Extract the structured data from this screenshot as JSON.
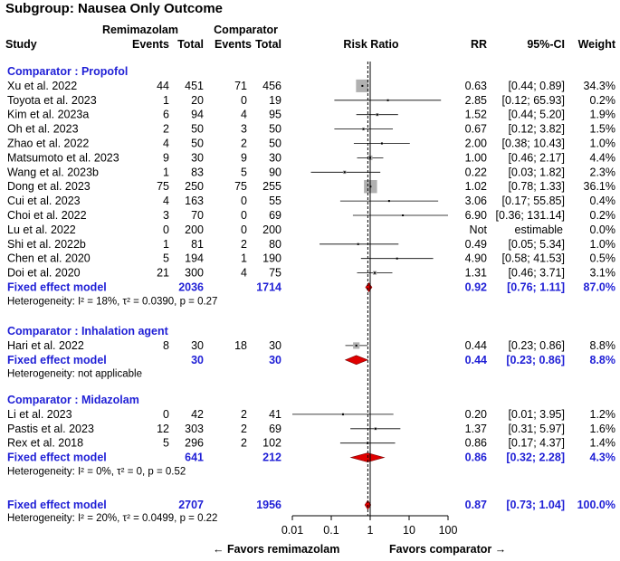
{
  "title": "Subgroup: Nausea Only Outcome",
  "headers": {
    "treatment_group": "Remimazolam",
    "comparator_group": "Comparator",
    "study": "Study",
    "events": "Events",
    "total": "Total",
    "plot": "Risk Ratio",
    "rr": "RR",
    "ci": "95%-CI",
    "weight": "Weight"
  },
  "axis": {
    "ticks": [
      "0.01",
      "0.1",
      "1",
      "10",
      "100"
    ],
    "favors_left": "← Favors remimazolam",
    "favors_right": "Favors comparator →"
  },
  "colors": {
    "subgroup_text": "#1f1fd6",
    "box": "#b0b0b0",
    "diamond": "#e00000"
  },
  "chart_data": {
    "type": "forest",
    "scale": "log",
    "xlim": [
      0.01,
      100
    ],
    "reference_line": 1,
    "overall_dashed_line": 0.87,
    "subgroups": [
      {
        "label": "Comparator : Propofol",
        "studies": [
          {
            "study": "Xu et al. 2022",
            "e1": "44",
            "n1": "451",
            "e2": "71",
            "n2": "456",
            "rr": 0.63,
            "lo": 0.44,
            "hi": 0.89,
            "rr_text": "0.63",
            "ci_text": "[0.44;  0.89]",
            "weight_text": "34.3%"
          },
          {
            "study": "Toyota et al. 2023",
            "e1": "1",
            "n1": "20",
            "e2": "0",
            "n2": "19",
            "rr": 2.85,
            "lo": 0.12,
            "hi": 65.93,
            "rr_text": "2.85",
            "ci_text": "[0.12; 65.93]",
            "weight_text": "0.2%"
          },
          {
            "study": "Kim et al. 2023a",
            "e1": "6",
            "n1": "94",
            "e2": "4",
            "n2": "95",
            "rr": 1.52,
            "lo": 0.44,
            "hi": 5.2,
            "rr_text": "1.52",
            "ci_text": "[0.44;  5.20]",
            "weight_text": "1.9%"
          },
          {
            "study": "Oh et al. 2023",
            "e1": "2",
            "n1": "50",
            "e2": "3",
            "n2": "50",
            "rr": 0.67,
            "lo": 0.12,
            "hi": 3.82,
            "rr_text": "0.67",
            "ci_text": "[0.12;  3.82]",
            "weight_text": "1.5%"
          },
          {
            "study": "Zhao et al. 2022",
            "e1": "4",
            "n1": "50",
            "e2": "2",
            "n2": "50",
            "rr": 2.0,
            "lo": 0.38,
            "hi": 10.43,
            "rr_text": "2.00",
            "ci_text": "[0.38; 10.43]",
            "weight_text": "1.0%"
          },
          {
            "study": "Matsumoto et al. 2023",
            "e1": "9",
            "n1": "30",
            "e2": "9",
            "n2": "30",
            "rr": 1.0,
            "lo": 0.46,
            "hi": 2.17,
            "rr_text": "1.00",
            "ci_text": "[0.46;  2.17]",
            "weight_text": "4.4%"
          },
          {
            "study": "Wang et al. 2023b",
            "e1": "1",
            "n1": "83",
            "e2": "5",
            "n2": "90",
            "rr": 0.22,
            "lo": 0.03,
            "hi": 1.82,
            "rr_text": "0.22",
            "ci_text": "[0.03;  1.82]",
            "weight_text": "2.3%"
          },
          {
            "study": "Dong et al. 2023",
            "e1": "75",
            "n1": "250",
            "e2": "75",
            "n2": "255",
            "rr": 1.02,
            "lo": 0.78,
            "hi": 1.33,
            "rr_text": "1.02",
            "ci_text": "[0.78;  1.33]",
            "weight_text": "36.1%"
          },
          {
            "study": "Cui et al. 2023",
            "e1": "4",
            "n1": "163",
            "e2": "0",
            "n2": "55",
            "rr": 3.06,
            "lo": 0.17,
            "hi": 55.85,
            "rr_text": "3.06",
            "ci_text": "[0.17; 55.85]",
            "weight_text": "0.4%"
          },
          {
            "study": "Choi et al. 2022",
            "e1": "3",
            "n1": "70",
            "e2": "0",
            "n2": "69",
            "rr": 6.9,
            "lo": 0.36,
            "hi": 131.14,
            "rr_text": "6.90",
            "ci_text": "[0.36; 131.14]",
            "weight_text": "0.2%"
          },
          {
            "study": "Lu et al. 2022",
            "e1": "0",
            "n1": "200",
            "e2": "0",
            "n2": "200",
            "rr": null,
            "lo": null,
            "hi": null,
            "rr_text": "Not",
            "ci_text": "estimable",
            "weight_text": "0.0%"
          },
          {
            "study": "Shi et al. 2022b",
            "e1": "1",
            "n1": "81",
            "e2": "2",
            "n2": "80",
            "rr": 0.49,
            "lo": 0.05,
            "hi": 5.34,
            "rr_text": "0.49",
            "ci_text": "[0.05;  5.34]",
            "weight_text": "1.0%"
          },
          {
            "study": "Chen et al. 2020",
            "e1": "5",
            "n1": "194",
            "e2": "1",
            "n2": "190",
            "rr": 4.9,
            "lo": 0.58,
            "hi": 41.53,
            "rr_text": "4.90",
            "ci_text": "[0.58; 41.53]",
            "weight_text": "0.5%"
          },
          {
            "study": "Doi et al. 2020",
            "e1": "21",
            "n1": "300",
            "e2": "4",
            "n2": "75",
            "rr": 1.31,
            "lo": 0.46,
            "hi": 3.71,
            "rr_text": "1.31",
            "ci_text": "[0.46;  3.71]",
            "weight_text": "3.1%"
          }
        ],
        "pooled": {
          "label": "Fixed effect model",
          "n1": "2036",
          "n2": "1714",
          "rr": 0.92,
          "lo": 0.76,
          "hi": 1.11,
          "rr_text": "0.92",
          "ci_text": "[0.76;  1.11]",
          "weight_text": "87.0%"
        },
        "heterogeneity": "Heterogeneity: I² = 18%, τ² = 0.0390, p = 0.27"
      },
      {
        "label": "Comparator : Inhalation agent",
        "studies": [
          {
            "study": "Hari et al. 2022",
            "e1": "8",
            "n1": "30",
            "e2": "18",
            "n2": "30",
            "rr": 0.44,
            "lo": 0.23,
            "hi": 0.86,
            "rr_text": "0.44",
            "ci_text": "[0.23;  0.86]",
            "weight_text": "8.8%"
          }
        ],
        "pooled": {
          "label": "Fixed effect model",
          "n1": "30",
          "n2": "30",
          "rr": 0.44,
          "lo": 0.23,
          "hi": 0.86,
          "rr_text": "0.44",
          "ci_text": "[0.23;  0.86]",
          "weight_text": "8.8%"
        },
        "heterogeneity": "Heterogeneity: not applicable"
      },
      {
        "label": "Comparator : Midazolam",
        "studies": [
          {
            "study": "Li et al. 2023",
            "e1": "0",
            "n1": "42",
            "e2": "2",
            "n2": "41",
            "rr": 0.2,
            "lo": 0.01,
            "hi": 3.95,
            "rr_text": "0.20",
            "ci_text": "[0.01;  3.95]",
            "weight_text": "1.2%"
          },
          {
            "study": "Pastis et al. 2023",
            "e1": "12",
            "n1": "303",
            "e2": "2",
            "n2": "69",
            "rr": 1.37,
            "lo": 0.31,
            "hi": 5.97,
            "rr_text": "1.37",
            "ci_text": "[0.31;  5.97]",
            "weight_text": "1.6%"
          },
          {
            "study": "Rex et al. 2018",
            "e1": "5",
            "n1": "296",
            "e2": "2",
            "n2": "102",
            "rr": 0.86,
            "lo": 0.17,
            "hi": 4.37,
            "rr_text": "0.86",
            "ci_text": "[0.17;  4.37]",
            "weight_text": "1.4%"
          }
        ],
        "pooled": {
          "label": "Fixed effect model",
          "n1": "641",
          "n2": "212",
          "rr": 0.86,
          "lo": 0.32,
          "hi": 2.28,
          "rr_text": "0.86",
          "ci_text": "[0.32;  2.28]",
          "weight_text": "4.3%"
        },
        "heterogeneity": "Heterogeneity: I² = 0%, τ² = 0, p = 0.52"
      }
    ],
    "overall": {
      "label": "Fixed effect model",
      "n1": "2707",
      "n2": "1956",
      "rr": 0.87,
      "lo": 0.73,
      "hi": 1.04,
      "rr_text": "0.87",
      "ci_text": "[0.73;  1.04]",
      "weight_text": "100.0%"
    },
    "overall_heterogeneity": "Heterogeneity: I² = 20%, τ² = 0.0499, p = 0.22"
  }
}
